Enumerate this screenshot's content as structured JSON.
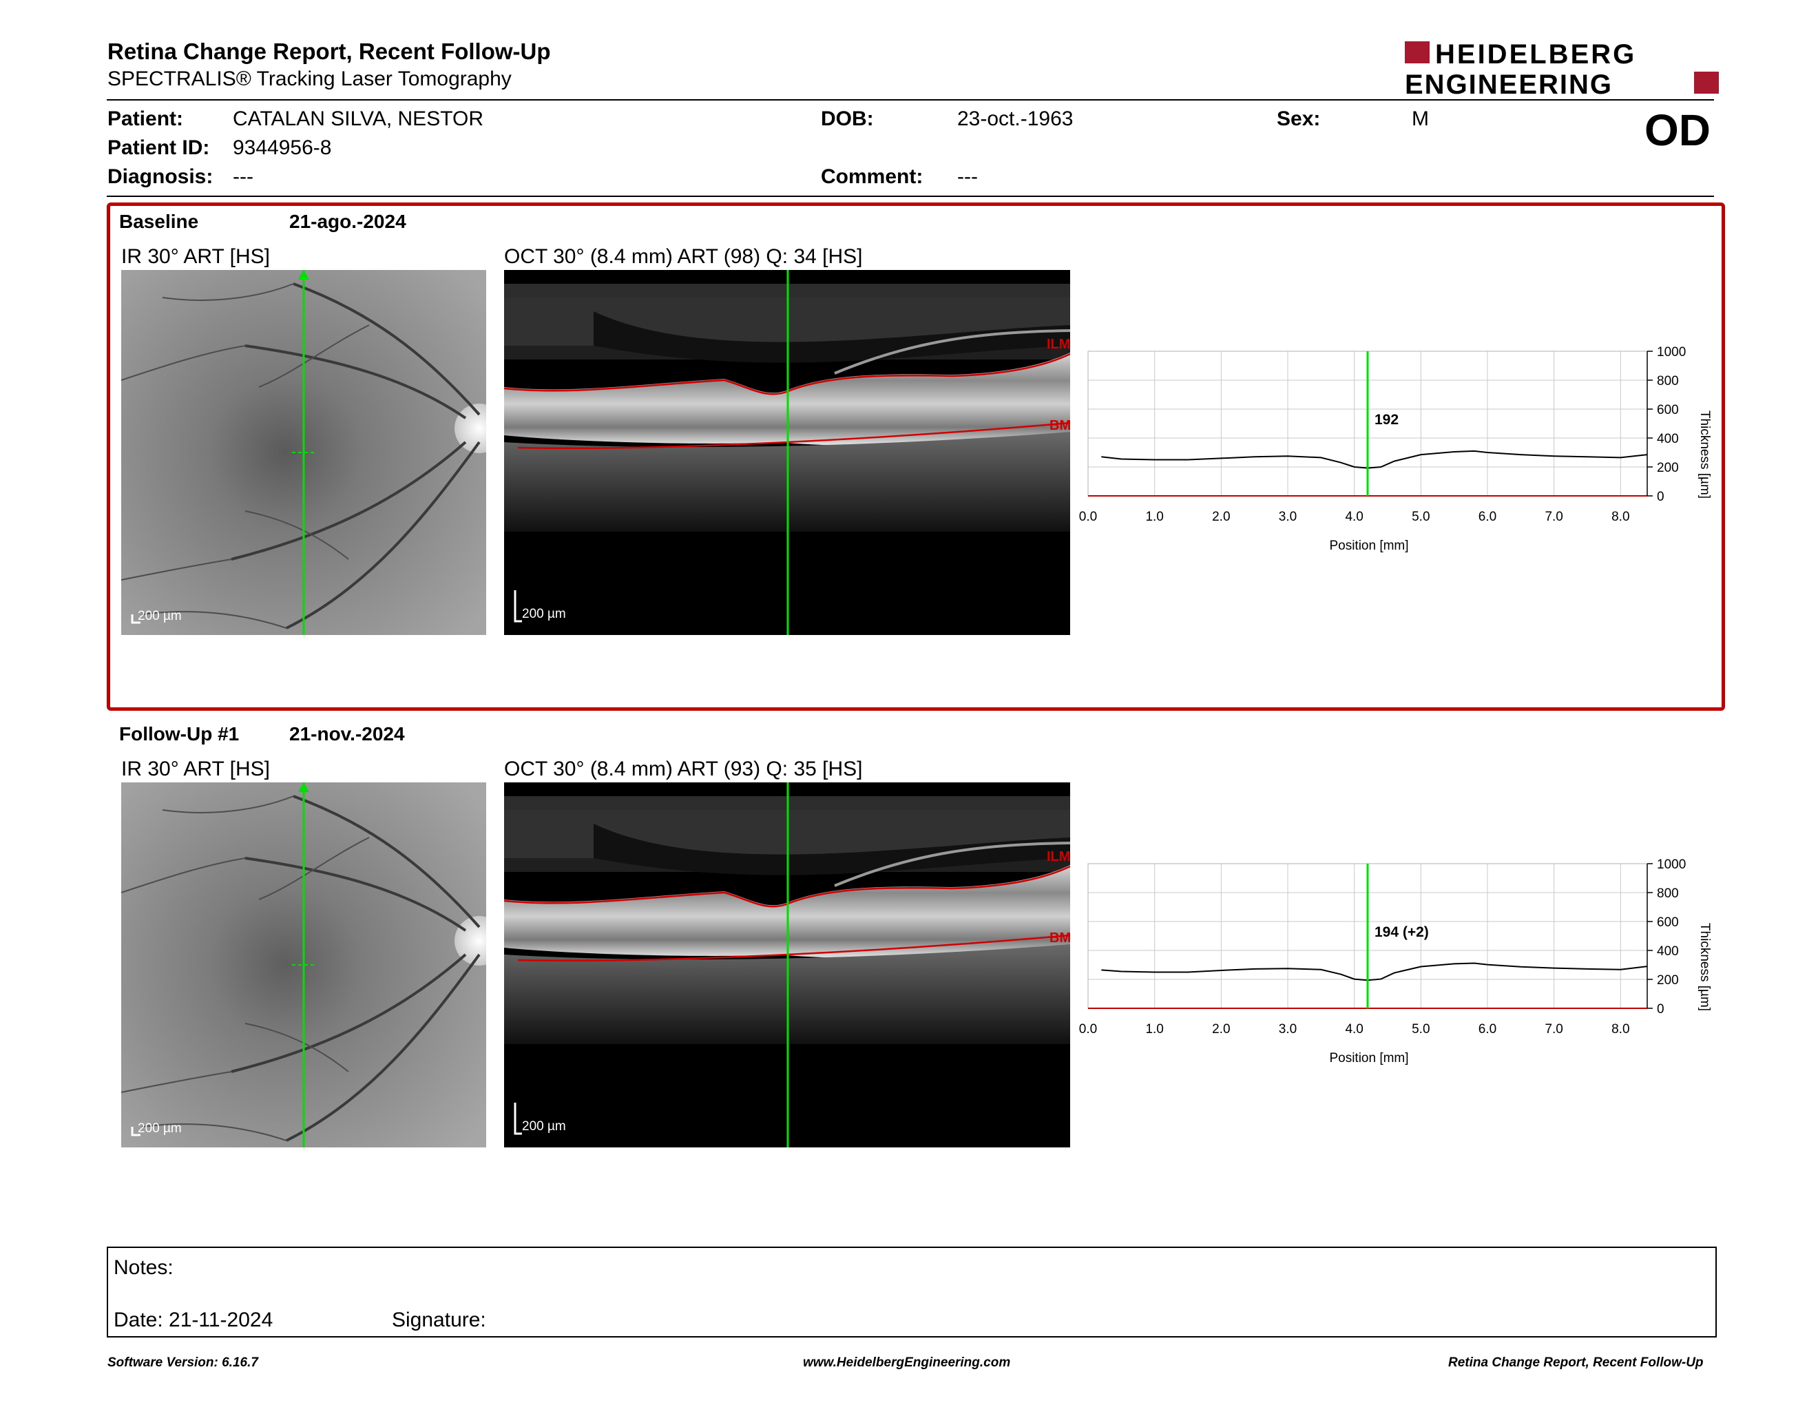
{
  "report": {
    "title": "Retina Change Report, Recent Follow-Up",
    "subtitle": "SPECTRALIS® Tracking Laser Tomography",
    "logo_line1": "HEIDELBERG",
    "logo_line2": "ENGINEERING"
  },
  "patient": {
    "name_label": "Patient:",
    "name": "CATALAN SILVA, NESTOR",
    "id_label": "Patient ID:",
    "id": "9344956-8",
    "diagnosis_label": "Diagnosis:",
    "diagnosis": "---",
    "dob_label": "DOB:",
    "dob": "23-oct.-1963",
    "comment_label": "Comment:",
    "comment": "---",
    "sex_label": "Sex:",
    "sex": "M",
    "eye": "OD"
  },
  "exams": [
    {
      "label": "Baseline",
      "date": "21-ago.-2024",
      "ir_title": "IR 30° ART [HS]",
      "oct_title": "OCT 30° (8.4 mm) ART (98) Q: 34 [HS]",
      "scale_ir": "200 µm",
      "scale_oct": "200 µm",
      "ilm": "ILM",
      "bm": "BM",
      "marker_label": "192"
    },
    {
      "label": "Follow-Up #1",
      "date": "21-nov.-2024",
      "ir_title": "IR 30° ART [HS]",
      "oct_title": "OCT 30° (8.4 mm) ART (93) Q: 35 [HS]",
      "scale_ir": "200 µm",
      "scale_oct": "200 µm",
      "ilm": "ILM",
      "bm": "BM",
      "marker_label": "194 (+2)"
    }
  ],
  "chart_data": [
    {
      "type": "line",
      "xlabel": "Position [mm]",
      "ylabel": "Thickness [µm]",
      "xlim": [
        0,
        8.4
      ],
      "ylim": [
        0,
        1000
      ],
      "x_ticks": [
        "0.0",
        "1.0",
        "2.0",
        "3.0",
        "4.0",
        "5.0",
        "6.0",
        "7.0",
        "8.0"
      ],
      "y_ticks": [
        "0",
        "200",
        "400",
        "600",
        "800",
        "1000"
      ],
      "marker_x": 4.2,
      "marker_value": 192,
      "series": [
        {
          "x": [
            0.2,
            0.5,
            1.0,
            1.5,
            2.0,
            2.5,
            3.0,
            3.5,
            3.8,
            4.0,
            4.2,
            4.4,
            4.6,
            5.0,
            5.5,
            5.8,
            6.0,
            6.5,
            7.0,
            7.5,
            8.0,
            8.4
          ],
          "values": [
            270,
            255,
            250,
            250,
            260,
            270,
            275,
            265,
            230,
            200,
            192,
            200,
            240,
            285,
            305,
            310,
            300,
            285,
            275,
            270,
            265,
            285
          ]
        }
      ]
    },
    {
      "type": "line",
      "xlabel": "Position [mm]",
      "ylabel": "Thickness [µm]",
      "xlim": [
        0,
        8.4
      ],
      "ylim": [
        0,
        1000
      ],
      "x_ticks": [
        "0.0",
        "1.0",
        "2.0",
        "3.0",
        "4.0",
        "5.0",
        "6.0",
        "7.0",
        "8.0"
      ],
      "y_ticks": [
        "0",
        "200",
        "400",
        "600",
        "800",
        "1000"
      ],
      "marker_x": 4.2,
      "marker_value": 194,
      "series": [
        {
          "x": [
            0.2,
            0.5,
            1.0,
            1.5,
            2.0,
            2.5,
            3.0,
            3.5,
            3.8,
            4.0,
            4.2,
            4.4,
            4.6,
            5.0,
            5.5,
            5.8,
            6.0,
            6.5,
            7.0,
            7.5,
            8.0,
            8.4
          ],
          "values": [
            265,
            255,
            250,
            250,
            262,
            272,
            275,
            268,
            235,
            202,
            194,
            202,
            245,
            288,
            308,
            312,
            302,
            287,
            278,
            272,
            268,
            290
          ]
        }
      ]
    }
  ],
  "notes": {
    "label": "Notes:",
    "date_text": "Date: 21-11-2024",
    "signature_label": "Signature:"
  },
  "footer": {
    "software": "Software Version: 6.16.7",
    "website": "www.HeidelbergEngineering.com",
    "report_name": "Retina Change Report, Recent Follow-Up"
  },
  "colors": {
    "accent": "#a6192e",
    "frame": "#c00000",
    "marker": "#00e000"
  }
}
